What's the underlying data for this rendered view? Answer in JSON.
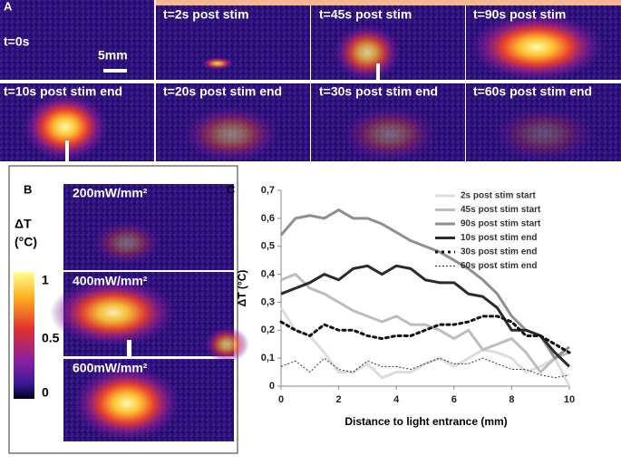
{
  "panel_a": {
    "label": "A",
    "scale_bar": "5mm",
    "images": [
      "t=0s",
      "t=2s post stim",
      "t=45s post stim",
      "t=90s post stim",
      "t=10s post stim end",
      "t=20s post stim end",
      "t=30s post stim end",
      "t=60s post stim end"
    ]
  },
  "panel_b": {
    "label": "B",
    "colorbar_title": "ΔT",
    "colorbar_unit": "(°C)",
    "colorbar_ticks": [
      "1",
      "0.5",
      "0"
    ],
    "images": [
      "200mW/mm²",
      "400mW/mm²",
      "600mW/mm²"
    ]
  },
  "chart_data": {
    "type": "line",
    "panel_label": "C",
    "x_label": "Distance to light entrance (mm)",
    "y_label": "ΔT (°C)",
    "x": [
      0,
      0.5,
      1,
      1.5,
      2,
      2.5,
      3,
      3.5,
      4,
      4.5,
      5,
      5.5,
      6,
      6.5,
      7,
      7.5,
      8,
      8.5,
      9,
      9.5,
      10
    ],
    "xlim": [
      0,
      10
    ],
    "xticks": [
      0,
      2,
      4,
      6,
      8,
      10
    ],
    "ylim": [
      0,
      0.7
    ],
    "yticks": [
      0,
      {
        "value": 0.1,
        "label": "0,1"
      },
      {
        "value": 0.2,
        "label": "0,2"
      },
      {
        "value": 0.3,
        "label": "0,3"
      },
      {
        "value": 0.4,
        "label": "0,4"
      },
      {
        "value": 0.5,
        "label": "0,5"
      },
      {
        "value": 0.6,
        "label": "0,6"
      },
      {
        "value": 0.7,
        "label": "0,7"
      }
    ],
    "legend": "upper right",
    "series": [
      {
        "name": "2s post stim start",
        "color": "#dcdcdc",
        "width": 3,
        "style": "solid",
        "values": [
          0.28,
          0.2,
          0.18,
          0.12,
          0.05,
          0.05,
          0.08,
          0.03,
          0.05,
          0.05,
          0.08,
          0.1,
          0.07,
          0.1,
          0.13,
          0.12,
          0.1,
          0.05,
          0.07,
          0.1,
          0.0
        ]
      },
      {
        "name": "45s post stim start",
        "color": "#bdbdbd",
        "width": 3,
        "style": "solid",
        "values": [
          0.38,
          0.4,
          0.35,
          0.33,
          0.3,
          0.27,
          0.25,
          0.23,
          0.25,
          0.22,
          0.22,
          0.2,
          0.17,
          0.2,
          0.13,
          0.15,
          0.17,
          0.12,
          0.05,
          0.1,
          0.12
        ]
      },
      {
        "name": "90s post stim start",
        "color": "#8f8f8f",
        "width": 3,
        "style": "solid",
        "values": [
          0.54,
          0.6,
          0.61,
          0.6,
          0.63,
          0.6,
          0.6,
          0.58,
          0.55,
          0.52,
          0.5,
          0.48,
          0.45,
          0.42,
          0.38,
          0.33,
          0.25,
          0.2,
          0.18,
          0.1,
          0.14
        ]
      },
      {
        "name": "10s post stim end",
        "color": "#2a2a2a",
        "width": 3,
        "style": "solid",
        "values": [
          0.33,
          0.35,
          0.37,
          0.4,
          0.38,
          0.42,
          0.43,
          0.4,
          0.43,
          0.42,
          0.38,
          0.37,
          0.37,
          0.33,
          0.32,
          0.28,
          0.2,
          0.2,
          0.18,
          0.12,
          0.07
        ]
      },
      {
        "name": "30s post stim end",
        "color": "#111111",
        "width": 3,
        "style": "dotted",
        "values": [
          0.23,
          0.2,
          0.18,
          0.22,
          0.2,
          0.2,
          0.18,
          0.17,
          0.18,
          0.18,
          0.2,
          0.22,
          0.22,
          0.23,
          0.25,
          0.25,
          0.23,
          0.18,
          0.18,
          0.15,
          0.12
        ]
      },
      {
        "name": "60s post stim end",
        "color": "#333333",
        "width": 1,
        "style": "dashed",
        "values": [
          0.07,
          0.09,
          0.05,
          0.1,
          0.06,
          0.05,
          0.09,
          0.07,
          0.07,
          0.06,
          0.08,
          0.1,
          0.08,
          0.08,
          0.1,
          0.08,
          0.06,
          0.06,
          0.04,
          0.03,
          0.04
        ]
      }
    ]
  }
}
